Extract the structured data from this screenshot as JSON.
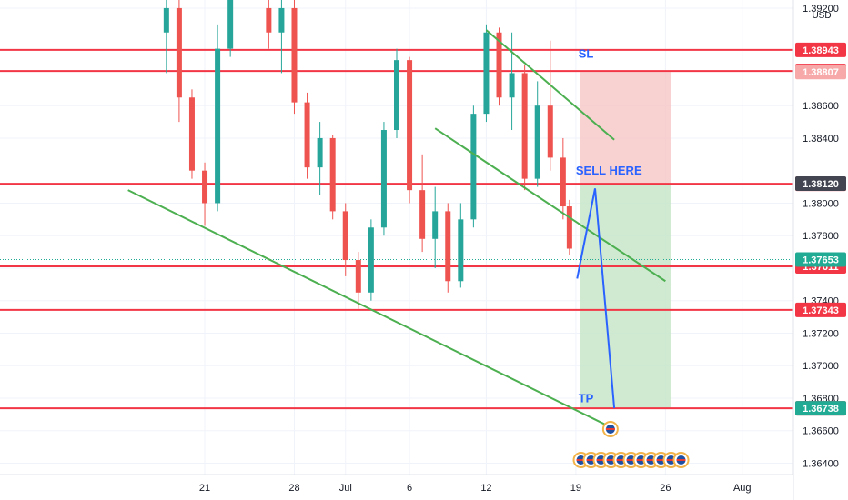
{
  "chart_data": {
    "type": "candlestick",
    "currency_label": "USD",
    "xlim": [
      -26,
      36
    ],
    "ylim": [
      1.3633,
      1.3925
    ],
    "y_ticks": [
      1.364,
      1.366,
      1.368,
      1.37,
      1.372,
      1.374,
      1.376,
      1.378,
      1.38,
      1.384,
      1.386,
      1.392
    ],
    "y_tick_labels": [
      "1.36400",
      "1.36600",
      "1.36800",
      "1.37000",
      "1.37200",
      "1.37400",
      "1.37600",
      "1.37800",
      "1.38000",
      "1.38400",
      "1.38600",
      "1.39200"
    ],
    "x_ticks": [
      {
        "day": -10,
        "label": "21"
      },
      {
        "day": -3,
        "label": "28"
      },
      {
        "day": 1,
        "label": "Jul"
      },
      {
        "day": 6,
        "label": "6"
      },
      {
        "day": 12,
        "label": "12"
      },
      {
        "day": 19,
        "label": "19"
      },
      {
        "day": 26,
        "label": "26"
      },
      {
        "day": 32,
        "label": "Aug"
      }
    ],
    "price_levels": [
      {
        "value": 1.38943,
        "label": "1.38943",
        "color": "#f23645"
      },
      {
        "value": 1.38813,
        "label": "1.38813",
        "color": "#f23645"
      },
      {
        "value": 1.38807,
        "label": "1.38807",
        "color": "#f7a9a9"
      },
      {
        "value": 1.38119,
        "label": "1.38119",
        "color": "#f23645"
      },
      {
        "value": 1.37611,
        "label": "1.37611",
        "color": "#f23645"
      },
      {
        "value": 1.37343,
        "label": "1.37343",
        "color": "#f23645"
      },
      {
        "value": 1.36738,
        "label": "1.36738",
        "color": "#f23645"
      }
    ],
    "price_badges": [
      {
        "value": 1.3812,
        "label": "1.38120",
        "color": "#434651"
      },
      {
        "value": 1.37653,
        "label": "1.37653",
        "color": "#22ab94"
      },
      {
        "value": 1.36738,
        "label": "1.36738",
        "color": "#22ab94"
      }
    ],
    "current_price": 1.37653,
    "trendlines": [
      {
        "from": [
          -16,
          1.3808
        ],
        "to": [
          21.6,
          1.36626
        ]
      },
      {
        "from": [
          8,
          1.3846
        ],
        "to": [
          26,
          1.3752
        ]
      },
      {
        "from": [
          12,
          1.39065
        ],
        "to": [
          22,
          1.3839
        ]
      }
    ],
    "position": {
      "start_day": 19.3,
      "end_day": 26.4,
      "stop": 1.38807,
      "entry": 1.38119,
      "target": 1.36738,
      "stop_color": "#f7c9c9",
      "target_color": "#c8e6c9"
    },
    "projection_path": [
      [
        19.1,
        1.37536
      ],
      [
        20.5,
        1.3809
      ],
      [
        22,
        1.36738
      ]
    ],
    "annotations": [
      {
        "text": "SL",
        "day": 19.2,
        "value": 1.38895
      },
      {
        "text": "SELL HERE",
        "day": 19.0,
        "value": 1.38175
      },
      {
        "text": "TP",
        "day": 19.2,
        "value": 1.36775
      }
    ],
    "candles": [
      {
        "day": -13,
        "open": 1.3905,
        "high": 1.3935,
        "low": 1.388,
        "close": 1.392
      },
      {
        "day": -12,
        "open": 1.392,
        "high": 1.3925,
        "low": 1.385,
        "close": 1.3865
      },
      {
        "day": -11,
        "open": 1.3865,
        "high": 1.387,
        "low": 1.3815,
        "close": 1.382
      },
      {
        "day": -10,
        "open": 1.382,
        "high": 1.3825,
        "low": 1.3786,
        "close": 1.38
      },
      {
        "day": -9,
        "open": 1.38,
        "high": 1.391,
        "low": 1.3795,
        "close": 1.3895
      },
      {
        "day": -8,
        "open": 1.3895,
        "high": 1.394,
        "low": 1.389,
        "close": 1.393
      },
      {
        "day": -5,
        "open": 1.392,
        "high": 1.3935,
        "low": 1.3895,
        "close": 1.3905
      },
      {
        "day": -4,
        "open": 1.3905,
        "high": 1.393,
        "low": 1.388,
        "close": 1.392
      },
      {
        "day": -3,
        "open": 1.392,
        "high": 1.3925,
        "low": 1.3855,
        "close": 1.3862
      },
      {
        "day": -2,
        "open": 1.3862,
        "high": 1.3868,
        "low": 1.3815,
        "close": 1.3822
      },
      {
        "day": -1,
        "open": 1.3822,
        "high": 1.385,
        "low": 1.3805,
        "close": 1.384
      },
      {
        "day": 0,
        "open": 1.384,
        "high": 1.3842,
        "low": 1.379,
        "close": 1.3795
      },
      {
        "day": 1,
        "open": 1.3795,
        "high": 1.38,
        "low": 1.3755,
        "close": 1.3765
      },
      {
        "day": 2,
        "open": 1.3765,
        "high": 1.377,
        "low": 1.3735,
        "close": 1.3745
      },
      {
        "day": 3,
        "open": 1.3745,
        "high": 1.379,
        "low": 1.374,
        "close": 1.3785
      },
      {
        "day": 4,
        "open": 1.3785,
        "high": 1.385,
        "low": 1.378,
        "close": 1.3845
      },
      {
        "day": 5,
        "open": 1.3845,
        "high": 1.3895,
        "low": 1.384,
        "close": 1.3888
      },
      {
        "day": 6,
        "open": 1.3888,
        "high": 1.389,
        "low": 1.38,
        "close": 1.3808
      },
      {
        "day": 7,
        "open": 1.3808,
        "high": 1.383,
        "low": 1.377,
        "close": 1.3778
      },
      {
        "day": 8,
        "open": 1.3778,
        "high": 1.381,
        "low": 1.376,
        "close": 1.3795
      },
      {
        "day": 9,
        "open": 1.3795,
        "high": 1.38,
        "low": 1.3745,
        "close": 1.3752
      },
      {
        "day": 10,
        "open": 1.3752,
        "high": 1.38,
        "low": 1.3748,
        "close": 1.379
      },
      {
        "day": 11,
        "open": 1.379,
        "high": 1.386,
        "low": 1.3785,
        "close": 1.3855
      },
      {
        "day": 12,
        "open": 1.3855,
        "high": 1.391,
        "low": 1.385,
        "close": 1.3905
      },
      {
        "day": 13,
        "open": 1.3905,
        "high": 1.3908,
        "low": 1.386,
        "close": 1.3865
      },
      {
        "day": 14,
        "open": 1.3865,
        "high": 1.3905,
        "low": 1.3845,
        "close": 1.388
      },
      {
        "day": 15,
        "open": 1.388,
        "high": 1.3885,
        "low": 1.3808,
        "close": 1.3815
      },
      {
        "day": 16,
        "open": 1.3815,
        "high": 1.3875,
        "low": 1.381,
        "close": 1.386
      },
      {
        "day": 17,
        "open": 1.386,
        "high": 1.39,
        "low": 1.382,
        "close": 1.3828
      },
      {
        "day": 18,
        "open": 1.3828,
        "high": 1.384,
        "low": 1.379,
        "close": 1.3798
      },
      {
        "day": 18.5,
        "open": 1.3798,
        "high": 1.3802,
        "low": 1.3768,
        "close": 1.3772
      }
    ],
    "events_count": 11
  }
}
